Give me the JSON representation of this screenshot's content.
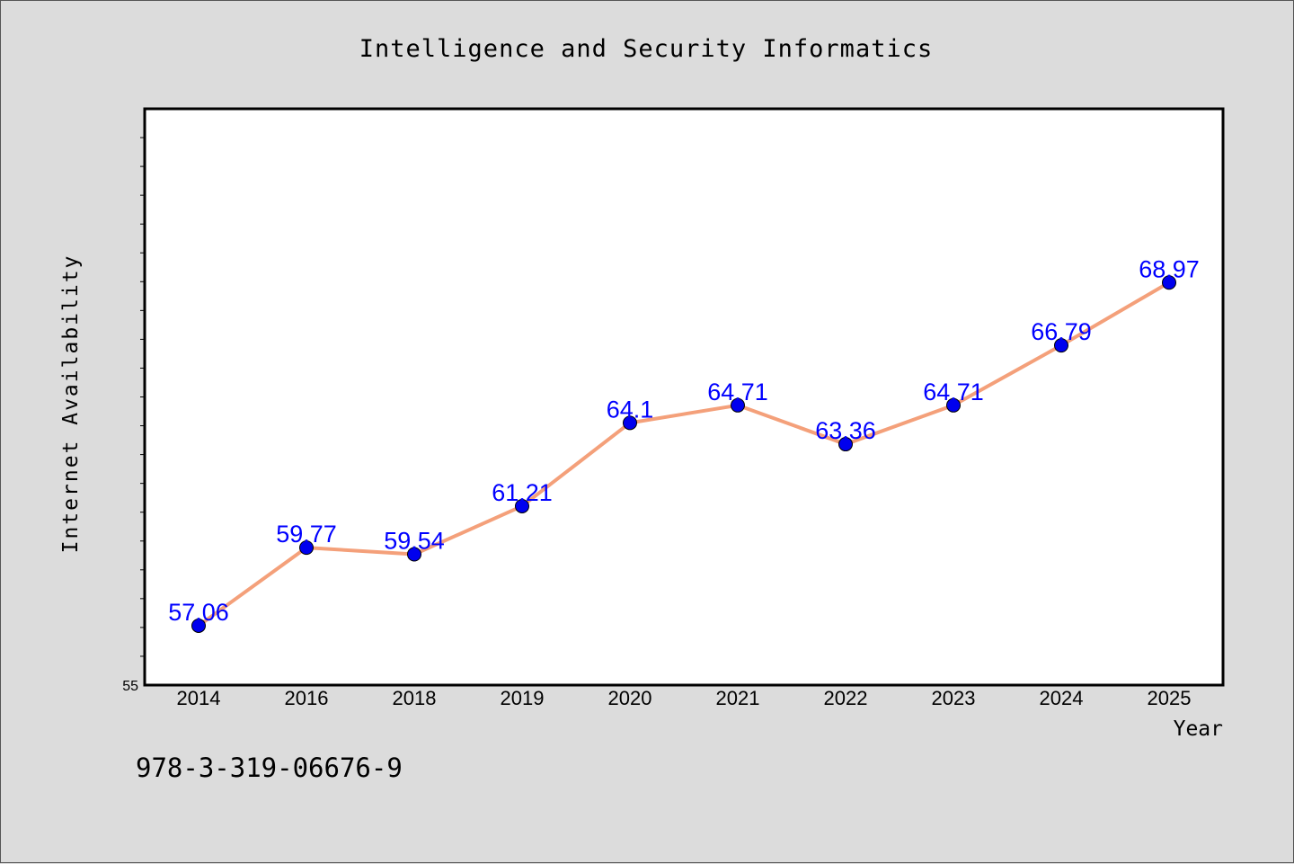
{
  "chart_data": {
    "type": "line",
    "title": "Intelligence and Security Informatics",
    "xlabel": "Year",
    "ylabel": "Internet Availability",
    "categories": [
      "2014",
      "2016",
      "2018",
      "2019",
      "2020",
      "2021",
      "2022",
      "2023",
      "2024",
      "2025"
    ],
    "series": [
      {
        "values": [
          57.06,
          59.77,
          59.54,
          61.21,
          64.1,
          64.71,
          63.36,
          64.71,
          66.79,
          68.97
        ],
        "data_labels": [
          "57.06",
          "59.77",
          "59.54",
          "61.21",
          "64.1",
          "64.71",
          "63.36",
          "64.71",
          "66.79",
          "68.97"
        ],
        "line_color": "#f4a07a",
        "marker_color": "#0000ee",
        "label_color": "#0000ff"
      }
    ],
    "ylim": [
      55,
      75
    ],
    "y_tick_labels": [
      "55"
    ],
    "grid": false,
    "footnote": "978-3-319-06676-9",
    "background": "#dcdcdc",
    "plot_background": "#ffffff"
  }
}
